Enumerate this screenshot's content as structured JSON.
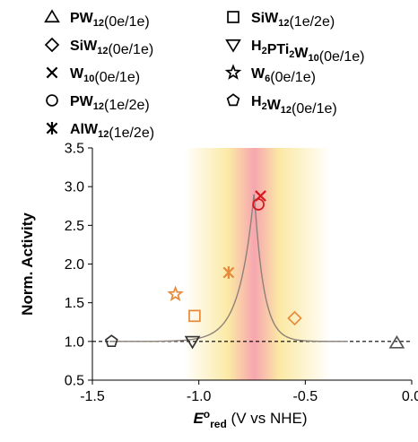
{
  "chart_data": {
    "type": "scatter",
    "xlabel": {
      "symbol": "E",
      "sup": "o",
      "sub": "red",
      "rest": " (V vs NHE)"
    },
    "ylabel": "Norm. Activity",
    "xlim": [
      -1.5,
      0.0
    ],
    "ylim": [
      0.5,
      3.5
    ],
    "xticks": [
      "-1.5",
      "-1.0",
      "-0.5",
      "0.0"
    ],
    "xtick_values": [
      -1.5,
      -1.0,
      -0.5,
      0.0
    ],
    "yticks": [
      "0.5",
      "1.0",
      "1.5",
      "2.0",
      "2.5",
      "3.0",
      "3.5"
    ],
    "ytick_values": [
      0.5,
      1.0,
      1.5,
      2.0,
      2.5,
      3.0,
      3.5
    ],
    "grid": false,
    "legend_placement": "top",
    "background": {
      "type": "color-gradient",
      "center_x": -0.74,
      "colors": [
        "#ffffff",
        "#fbe9a4",
        "#f7a6b0"
      ]
    },
    "baseline": {
      "y": 1.0,
      "style": "dashed",
      "color": "#000000"
    },
    "volcano_curve": {
      "peak_x": -0.74,
      "peak_y": 2.93,
      "base_y": 1.0,
      "x_from": -1.42,
      "x_to": -0.3,
      "color": "#8c8278"
    },
    "series": [
      {
        "legend_main": "PW",
        "legend_sub": "12",
        "legend_rest": "(0e/1e)",
        "marker": "triangle",
        "color": "#555555",
        "x": -0.07,
        "y": 0.98
      },
      {
        "legend_main": "SiW",
        "legend_sub": "12",
        "legend_rest": "(1e/2e)",
        "marker": "square",
        "color": "#e8893a",
        "x": -1.02,
        "y": 1.33
      },
      {
        "legend_main": "SiW",
        "legend_sub": "12",
        "legend_rest": "(0e/1e)",
        "marker": "diamond",
        "color": "#e8893a",
        "x": -0.55,
        "y": 1.3
      },
      {
        "legend_main": "H",
        "legend_sub": "2",
        "legend_main2": "PTi",
        "legend_sub2": "2",
        "legend_main3": "W",
        "legend_sub3": "10",
        "legend_rest": "(0e/1e)",
        "marker": "triangle-down",
        "color": "#333333",
        "x": -1.03,
        "y": 1.0
      },
      {
        "legend_main": "W",
        "legend_sub": "10",
        "legend_rest": "(0e/1e)",
        "marker": "x",
        "color": "#d9161e",
        "x": -0.71,
        "y": 2.88
      },
      {
        "legend_main": "W",
        "legend_sub": "6",
        "legend_rest": "(0e/1e)",
        "marker": "star",
        "color": "#e8893a",
        "x": -1.11,
        "y": 1.61
      },
      {
        "legend_main": "PW",
        "legend_sub": "12",
        "legend_rest": "(1e/2e)",
        "marker": "circle",
        "color": "#d9161e",
        "x": -0.72,
        "y": 2.77
      },
      {
        "legend_main": "H",
        "legend_sub": "2",
        "legend_main2": "W",
        "legend_sub2": "12",
        "legend_rest": "(0e/1e)",
        "marker": "pentagon",
        "color": "#333333",
        "x": -1.41,
        "y": 1.0
      },
      {
        "legend_main": "AlW",
        "legend_sub": "12",
        "legend_rest": "(1e/2e)",
        "marker": "asterisk",
        "color": "#e8893a",
        "x": -0.86,
        "y": 1.89
      }
    ]
  }
}
